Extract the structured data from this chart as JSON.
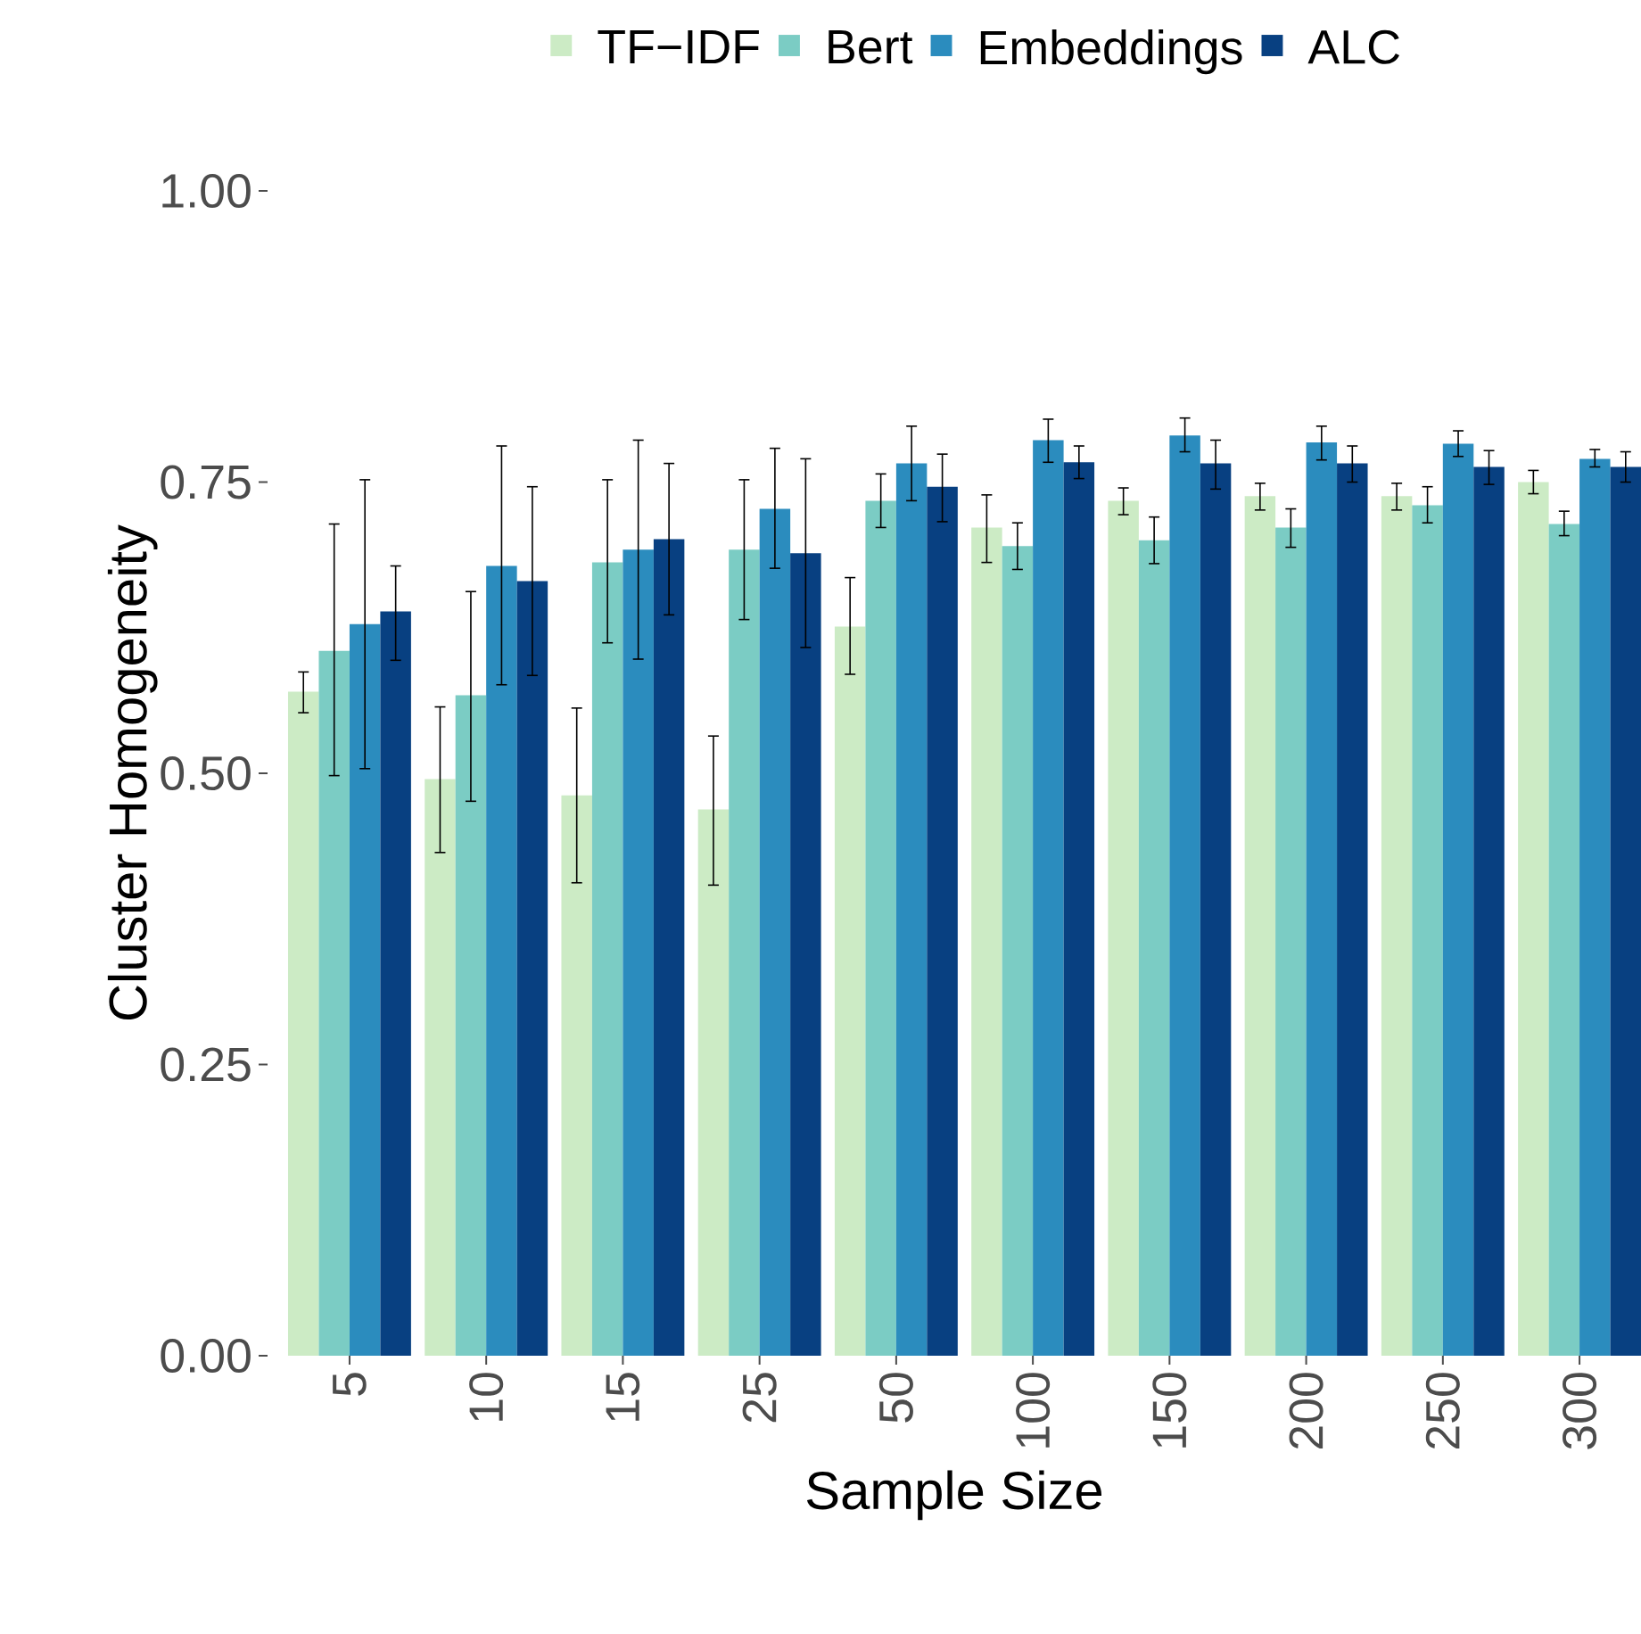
{
  "chart_data": {
    "type": "bar",
    "xlabel": "Sample Size",
    "ylabel": "Cluster Homogeneity",
    "categories": [
      "5",
      "10",
      "15",
      "25",
      "50",
      "100",
      "150",
      "200",
      "250",
      "300"
    ],
    "ylim": [
      0,
      1
    ],
    "yticks": [
      {
        "value": 0,
        "label": "0.00"
      },
      {
        "value": 0.25,
        "label": "0.25"
      },
      {
        "value": 0.5,
        "label": "0.50"
      },
      {
        "value": 0.75,
        "label": "0.75"
      },
      {
        "value": 1,
        "label": "1.00"
      }
    ],
    "legend": "top",
    "grid": false,
    "series": [
      {
        "name": "TF−IDF",
        "color": "#ccebc5",
        "values": [
          0.57,
          0.495,
          0.481,
          0.469,
          0.626,
          0.711,
          0.734,
          0.738,
          0.738,
          0.75
        ],
        "errors": [
          [
            0.552,
            0.587
          ],
          [
            0.432,
            0.557
          ],
          [
            0.406,
            0.556
          ],
          [
            0.404,
            0.532
          ],
          [
            0.585,
            0.668
          ],
          [
            0.681,
            0.739
          ],
          [
            0.722,
            0.745
          ],
          [
            0.726,
            0.749
          ],
          [
            0.726,
            0.749
          ],
          [
            0.74,
            0.76
          ]
        ]
      },
      {
        "name": "Bert",
        "color": "#7bccc4",
        "values": [
          0.605,
          0.567,
          0.681,
          0.692,
          0.734,
          0.695,
          0.7,
          0.711,
          0.73,
          0.714
        ],
        "errors": [
          [
            0.498,
            0.714
          ],
          [
            0.476,
            0.656
          ],
          [
            0.612,
            0.752
          ],
          [
            0.632,
            0.752
          ],
          [
            0.711,
            0.757
          ],
          [
            0.675,
            0.715
          ],
          [
            0.68,
            0.72
          ],
          [
            0.694,
            0.727
          ],
          [
            0.715,
            0.746
          ],
          [
            0.704,
            0.725
          ]
        ]
      },
      {
        "name": "Embeddings",
        "color": "#2b8cbe",
        "values": [
          0.628,
          0.678,
          0.692,
          0.727,
          0.766,
          0.786,
          0.79,
          0.784,
          0.783,
          0.77
        ],
        "errors": [
          [
            0.504,
            0.752
          ],
          [
            0.576,
            0.781
          ],
          [
            0.598,
            0.786
          ],
          [
            0.676,
            0.779
          ],
          [
            0.734,
            0.798
          ],
          [
            0.767,
            0.804
          ],
          [
            0.776,
            0.805
          ],
          [
            0.769,
            0.798
          ],
          [
            0.772,
            0.794
          ],
          [
            0.763,
            0.778
          ]
        ]
      },
      {
        "name": "ALC",
        "color": "#084081",
        "values": [
          0.639,
          0.665,
          0.701,
          0.689,
          0.746,
          0.767,
          0.766,
          0.766,
          0.763,
          0.763
        ],
        "errors": [
          [
            0.597,
            0.678
          ],
          [
            0.584,
            0.746
          ],
          [
            0.636,
            0.766
          ],
          [
            0.608,
            0.77
          ],
          [
            0.716,
            0.774
          ],
          [
            0.753,
            0.781
          ],
          [
            0.744,
            0.786
          ],
          [
            0.75,
            0.781
          ],
          [
            0.748,
            0.777
          ],
          [
            0.75,
            0.776
          ]
        ]
      }
    ]
  }
}
